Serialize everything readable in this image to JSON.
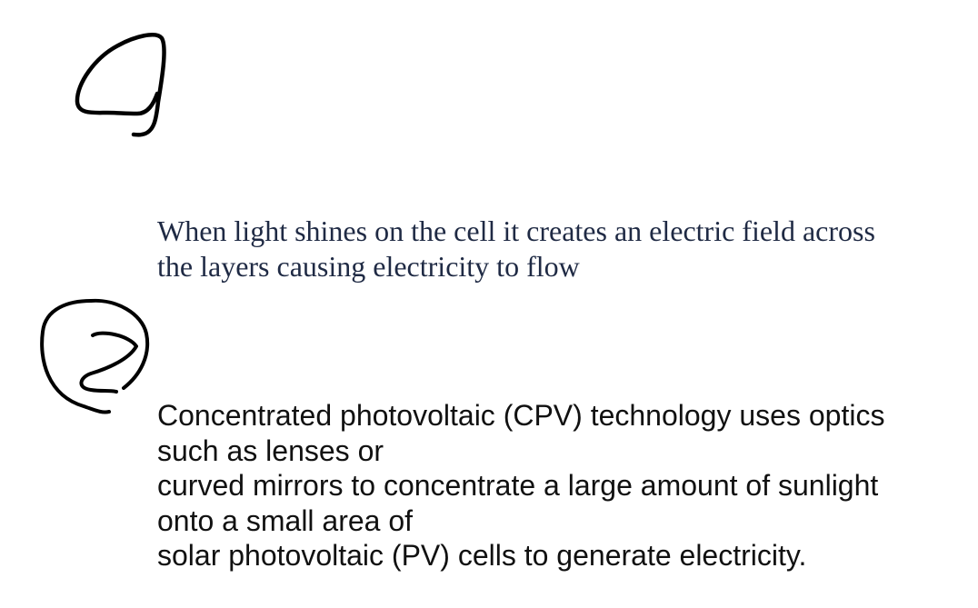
{
  "marks": {
    "one": "1",
    "two": "2"
  },
  "paragraph_1": {
    "lines": [
      "When light shines on the cell it creates an electric field across",
      "the layers causing electricity to flow"
    ]
  },
  "paragraph_2": {
    "lines": [
      "Concentrated photovoltaic (CPV) technology uses optics",
      "such as lenses or",
      "curved mirrors to concentrate a large amount of sunlight",
      "onto a small area of",
      "solar photovoltaic (PV) cells to generate electricity."
    ]
  },
  "colors": {
    "ink": "#000000",
    "serif_text": "#1f2a44",
    "sans_text": "#111111"
  }
}
